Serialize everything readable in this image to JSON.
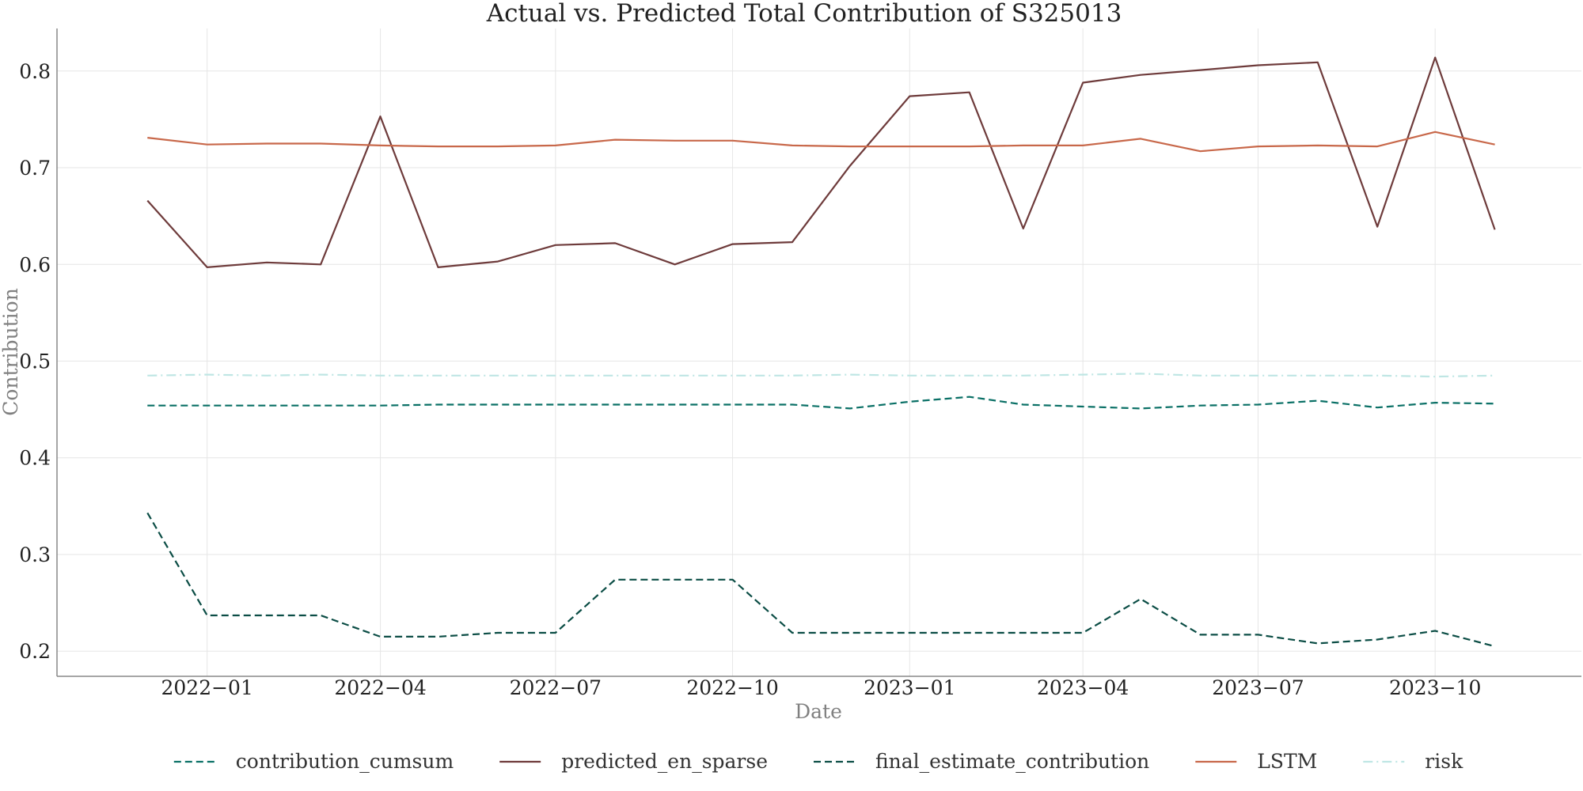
{
  "chart_data": {
    "type": "line",
    "title": "Actual vs. Predicted Total Contribution of S325013",
    "xlabel": "Date",
    "ylabel": "Contribution",
    "ylim": [
      0.174,
      0.844
    ],
    "yticks": [
      0.2,
      0.3,
      0.4,
      0.5,
      0.6,
      0.7,
      0.8
    ],
    "ytick_labels": [
      "0.2",
      "0.3",
      "0.4",
      "0.5",
      "0.6",
      "0.7",
      "0.8"
    ],
    "xlim": [
      "2021-10-15",
      "2023-12-16"
    ],
    "xticks": [
      "2022-01-01",
      "2022-04-01",
      "2022-07-01",
      "2022-10-01",
      "2023-01-01",
      "2023-04-01",
      "2023-07-01",
      "2023-10-01"
    ],
    "xtick_labels": [
      "2022−01",
      "2022−04",
      "2022−07",
      "2022−10",
      "2023−01",
      "2023−04",
      "2023−07",
      "2023−10"
    ],
    "grid": true,
    "legend_position": "bottom",
    "x": [
      "2021-12-01",
      "2022-01-01",
      "2022-02-01",
      "2022-03-01",
      "2022-04-01",
      "2022-05-01",
      "2022-06-01",
      "2022-07-01",
      "2022-08-01",
      "2022-09-01",
      "2022-10-01",
      "2022-11-01",
      "2022-12-01",
      "2023-01-01",
      "2023-02-01",
      "2023-03-01",
      "2023-04-01",
      "2023-05-01",
      "2023-06-01",
      "2023-07-01",
      "2023-08-01",
      "2023-09-01",
      "2023-10-01",
      "2023-11-01"
    ],
    "series": [
      {
        "name": "contribution_cumsum",
        "color": "#0a7066",
        "dash": "dashed",
        "values": [
          0.454,
          0.454,
          0.454,
          0.454,
          0.454,
          0.455,
          0.455,
          0.455,
          0.455,
          0.455,
          0.455,
          0.455,
          0.451,
          0.458,
          0.463,
          0.455,
          0.453,
          0.451,
          0.454,
          0.455,
          0.459,
          0.452,
          0.457,
          0.456
        ]
      },
      {
        "name": "predicted_en_sparse",
        "color": "#6e3b3b",
        "dash": "solid",
        "values": [
          0.666,
          0.597,
          0.602,
          0.6,
          0.753,
          0.597,
          0.603,
          0.62,
          0.622,
          0.6,
          0.621,
          0.623,
          0.702,
          0.774,
          0.778,
          0.637,
          0.788,
          0.796,
          0.801,
          0.806,
          0.809,
          0.639,
          0.814,
          0.636
        ]
      },
      {
        "name": "final_estimate_contribution",
        "color": "#0b4d45",
        "dash": "dashed",
        "values": [
          0.343,
          0.237,
          0.237,
          0.237,
          0.215,
          0.215,
          0.219,
          0.219,
          0.274,
          0.274,
          0.274,
          0.219,
          0.219,
          0.219,
          0.219,
          0.219,
          0.219,
          0.254,
          0.217,
          0.217,
          0.208,
          0.212,
          0.221,
          0.205
        ]
      },
      {
        "name": "LSTM",
        "color": "#c8684a",
        "dash": "solid",
        "values": [
          0.731,
          0.724,
          0.725,
          0.725,
          0.723,
          0.722,
          0.722,
          0.723,
          0.729,
          0.728,
          0.728,
          0.723,
          0.722,
          0.722,
          0.722,
          0.723,
          0.723,
          0.73,
          0.717,
          0.722,
          0.723,
          0.722,
          0.737,
          0.724
        ]
      },
      {
        "name": "risk",
        "color": "#bfe6e4",
        "dash": "dashdot",
        "values": [
          0.485,
          0.486,
          0.485,
          0.486,
          0.485,
          0.485,
          0.485,
          0.485,
          0.485,
          0.485,
          0.485,
          0.485,
          0.486,
          0.485,
          0.485,
          0.485,
          0.486,
          0.487,
          0.485,
          0.485,
          0.485,
          0.485,
          0.484,
          0.485
        ]
      }
    ]
  }
}
